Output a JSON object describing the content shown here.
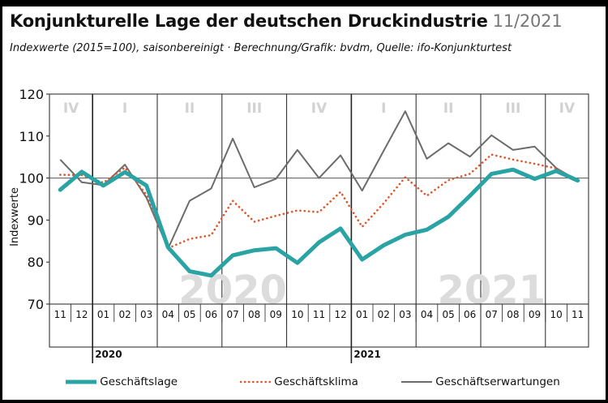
{
  "title": "Konjunkturelle Lage der deutschen Druckindustrie",
  "title_date": "11/2021",
  "subtitle": "Indexwerte (2015=100), saisonbereinigt · Berechnung/Grafik: bvdm, Quelle: ifo-Konjunkturtest",
  "colors": {
    "lage": "#2aa3a4",
    "klima": "#e0542a",
    "erwartungen": "#6b6b6b",
    "watermark": "#dcdcdc",
    "quarter": "#d2d2d2"
  },
  "chart_data": {
    "type": "line",
    "x": [
      "11",
      "12",
      "01",
      "02",
      "03",
      "04",
      "05",
      "06",
      "07",
      "08",
      "09",
      "10",
      "11",
      "12",
      "01",
      "02",
      "03",
      "04",
      "05",
      "06",
      "07",
      "08",
      "09",
      "10",
      "11"
    ],
    "year_labels": [
      {
        "label": "2020",
        "index": 2
      },
      {
        "label": "2021",
        "index": 14
      }
    ],
    "quarter_labels": [
      {
        "label": "IV",
        "start": 0,
        "end": 2
      },
      {
        "label": "I",
        "start": 2,
        "end": 5
      },
      {
        "label": "II",
        "start": 5,
        "end": 8
      },
      {
        "label": "III",
        "start": 8,
        "end": 11
      },
      {
        "label": "IV",
        "start": 11,
        "end": 14
      },
      {
        "label": "I",
        "start": 14,
        "end": 17
      },
      {
        "label": "II",
        "start": 17,
        "end": 20
      },
      {
        "label": "III",
        "start": 20,
        "end": 23
      },
      {
        "label": "IV",
        "start": 23,
        "end": 25
      }
    ],
    "watermarks": [
      {
        "label": "2020",
        "center": 8
      },
      {
        "label": "2021",
        "center": 20
      }
    ],
    "ylabel": "Indexwerte",
    "ylim": [
      70,
      120
    ],
    "yticks": [
      70,
      80,
      90,
      100,
      110,
      120
    ],
    "reference_line": 100,
    "series": [
      {
        "key": "lage",
        "name": "Geschäftslage",
        "style": "solid-thick",
        "values": [
          97.2,
          101.5,
          98.2,
          101.4,
          98.2,
          83.5,
          77.8,
          76.8,
          81.6,
          82.8,
          83.3,
          79.8,
          84.7,
          88.0,
          80.6,
          84.0,
          86.5,
          87.7,
          90.8,
          95.8,
          101.0,
          102.0,
          99.8,
          101.7,
          99.4
        ]
      },
      {
        "key": "klima",
        "name": "Geschäftsklima",
        "style": "dotted",
        "values": [
          100.8,
          100.7,
          98.9,
          102.5,
          96.0,
          83.3,
          85.5,
          86.4,
          94.6,
          89.6,
          91.0,
          92.3,
          91.9,
          96.7,
          88.4,
          94.0,
          100.2,
          95.8,
          99.5,
          101.0,
          105.6,
          104.4,
          103.4,
          102.3,
          99.4
        ]
      },
      {
        "key": "erwartungen",
        "name": "Geschäftserwartungen",
        "style": "solid-thin",
        "values": [
          104.4,
          99.0,
          98.3,
          103.2,
          95.3,
          83.2,
          94.6,
          97.5,
          109.4,
          97.8,
          99.8,
          106.7,
          100.0,
          105.4,
          97.0,
          106.5,
          115.9,
          104.6,
          108.3,
          105.1,
          110.2,
          106.7,
          107.5,
          102.4,
          99.4
        ]
      }
    ]
  },
  "legend": [
    {
      "key": "lage",
      "label": "Geschäftslage"
    },
    {
      "key": "klima",
      "label": "Geschäftsklima"
    },
    {
      "key": "erwartungen",
      "label": "Geschäftserwartungen"
    }
  ]
}
